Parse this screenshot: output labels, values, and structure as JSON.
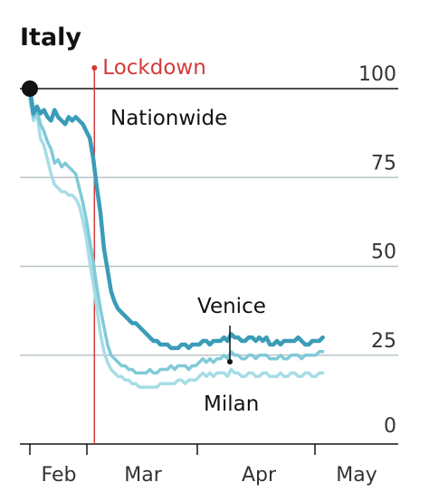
{
  "chart_data": {
    "type": "line",
    "title": "Italy",
    "xlabel": "",
    "ylabel": "",
    "ylim": [
      0,
      100
    ],
    "yticks": [
      0,
      25,
      50,
      75,
      100
    ],
    "xticks": [
      "Feb",
      "Mar",
      "Apr",
      "May"
    ],
    "grid": true,
    "lockdown": {
      "label": "Lockdown",
      "day": 17
    },
    "colors": {
      "nationwide": "#3a9cb8",
      "venice": "#7fcad8",
      "milan": "#a5dde6",
      "lockdown": "#d33a3a",
      "grid": "#b8c4c8",
      "axis": "#121212"
    },
    "series": [
      {
        "name": "Nationwide",
        "day": [
          0,
          1,
          2,
          3,
          4,
          5,
          6,
          7,
          8,
          9,
          10,
          11,
          12,
          13,
          14,
          15,
          16,
          17,
          18,
          19,
          20,
          21,
          22,
          23,
          24,
          25,
          26,
          27,
          28,
          29,
          30,
          31,
          32,
          33,
          34,
          35,
          36,
          37,
          38,
          39,
          40,
          41,
          42,
          43,
          44,
          45,
          46,
          47,
          48,
          49,
          50,
          51,
          52,
          53,
          54,
          55,
          56,
          57,
          58,
          59,
          60,
          61,
          62,
          63,
          64,
          65,
          66,
          67,
          68,
          69,
          70,
          71,
          72,
          73,
          74,
          75,
          76,
          77,
          78,
          79,
          80,
          81,
          82,
          83
        ],
        "values": [
          100,
          93,
          95,
          93,
          94,
          92,
          91,
          94,
          92,
          91,
          90,
          92,
          91,
          92,
          91,
          90,
          88,
          86,
          80,
          72,
          65,
          55,
          49,
          43,
          40,
          38,
          37,
          36,
          35,
          34,
          34,
          33,
          32,
          31,
          30,
          29,
          29,
          28,
          28,
          28,
          27,
          27,
          27,
          28,
          28,
          27,
          28,
          28,
          28,
          29,
          29,
          28,
          29,
          29,
          29,
          30,
          29,
          31,
          30,
          30,
          29,
          29,
          30,
          30,
          29,
          30,
          29,
          30,
          28,
          28,
          29,
          28,
          29,
          29,
          29,
          29,
          30,
          29,
          28,
          28,
          29,
          29,
          29,
          30
        ]
      },
      {
        "name": "Venice",
        "day": [
          0,
          1,
          2,
          3,
          4,
          5,
          6,
          7,
          8,
          9,
          10,
          11,
          12,
          13,
          14,
          15,
          16,
          17,
          18,
          19,
          20,
          21,
          22,
          23,
          24,
          25,
          26,
          27,
          28,
          29,
          30,
          31,
          32,
          33,
          34,
          35,
          36,
          37,
          38,
          39,
          40,
          41,
          42,
          43,
          44,
          45,
          46,
          47,
          48,
          49,
          50,
          51,
          52,
          53,
          54,
          55,
          56,
          57,
          58,
          59,
          60,
          61,
          62,
          63,
          64,
          65,
          66,
          67,
          68,
          69,
          70,
          71,
          72,
          73,
          74,
          75,
          76,
          77,
          78,
          79,
          80,
          81,
          82,
          83
        ],
        "values": [
          98,
          92,
          94,
          90,
          88,
          85,
          83,
          79,
          80,
          78,
          79,
          78,
          77,
          76,
          72,
          68,
          63,
          57,
          51,
          44,
          38,
          33,
          28,
          25,
          24,
          23,
          22,
          22,
          21,
          21,
          20,
          20,
          20,
          20,
          21,
          20,
          20,
          21,
          21,
          21,
          22,
          21,
          22,
          22,
          22,
          21,
          22,
          22,
          23,
          24,
          23,
          24,
          23,
          24,
          24,
          25,
          24,
          26,
          25,
          25,
          24,
          24,
          25,
          25,
          24,
          25,
          25,
          25,
          24,
          24,
          24,
          25,
          24,
          24,
          25,
          25,
          25,
          24,
          25,
          25,
          25,
          25,
          26,
          26
        ]
      },
      {
        "name": "Milan",
        "day": [
          0,
          1,
          2,
          3,
          4,
          5,
          6,
          7,
          8,
          9,
          10,
          11,
          12,
          13,
          14,
          15,
          16,
          17,
          18,
          19,
          20,
          21,
          22,
          23,
          24,
          25,
          26,
          27,
          28,
          29,
          30,
          31,
          32,
          33,
          34,
          35,
          36,
          37,
          38,
          39,
          40,
          41,
          42,
          43,
          44,
          45,
          46,
          47,
          48,
          49,
          50,
          51,
          52,
          53,
          54,
          55,
          56,
          57,
          58,
          59,
          60,
          61,
          62,
          63,
          64,
          65,
          66,
          67,
          68,
          69,
          70,
          71,
          72,
          73,
          74,
          75,
          76,
          77,
          78,
          79,
          80,
          81,
          82,
          83
        ],
        "values": [
          97,
          91,
          93,
          86,
          84,
          80,
          76,
          73,
          72,
          71,
          71,
          70,
          70,
          69,
          67,
          63,
          58,
          51,
          45,
          38,
          31,
          26,
          23,
          21,
          20,
          19,
          19,
          18,
          18,
          17,
          17,
          16,
          16,
          16,
          16,
          16,
          16,
          17,
          17,
          17,
          17,
          17,
          18,
          18,
          17,
          18,
          18,
          18,
          19,
          20,
          19,
          20,
          19,
          20,
          20,
          20,
          19,
          21,
          20,
          20,
          19,
          19,
          20,
          20,
          19,
          19,
          20,
          20,
          19,
          19,
          19,
          20,
          19,
          19,
          20,
          20,
          19,
          19,
          20,
          20,
          19,
          19,
          20,
          20
        ]
      }
    ],
    "labels": {
      "nationwide": "Nationwide",
      "venice": "Venice",
      "milan": "Milan"
    }
  }
}
